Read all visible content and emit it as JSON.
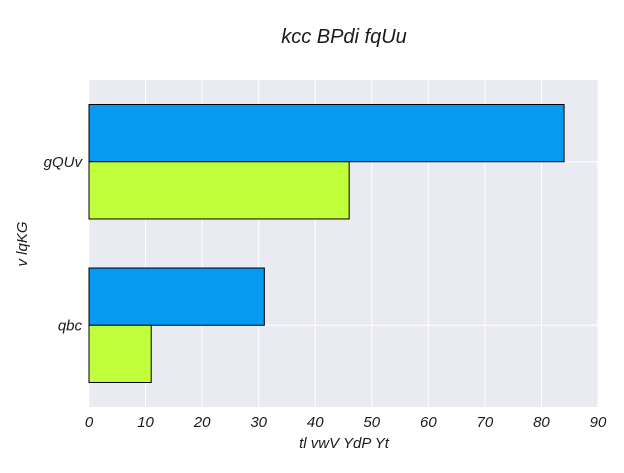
{
  "chart_data": {
    "type": "bar",
    "orientation": "horizontal",
    "title": "kcc BPdi  fqUu",
    "xlabel": "tl vwV YdP Yt",
    "ylabel": "v lqKG",
    "categories": [
      "gQUv",
      "qbc"
    ],
    "series": [
      {
        "values": [
          84,
          31
        ],
        "color": "#069af3"
      },
      {
        "values": [
          46,
          11
        ],
        "color": "#c1ff3b"
      }
    ],
    "xlim": [
      0,
      90
    ],
    "xticks": [
      0,
      10,
      20,
      30,
      40,
      50,
      60,
      70,
      80,
      90
    ],
    "grid": true,
    "legend": "none",
    "style": {
      "plot_background": "#eaeaf2",
      "grid_color": "#ffffff",
      "bar_edge_color": "#000000"
    }
  }
}
